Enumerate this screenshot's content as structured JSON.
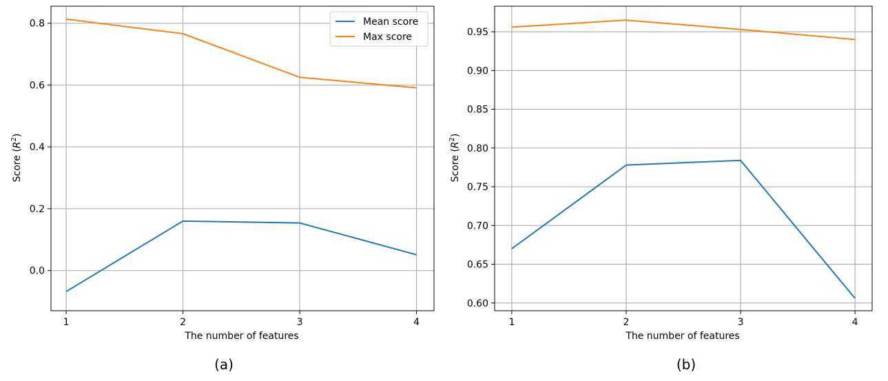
{
  "chart_data": [
    {
      "type": "line",
      "panel_label": "(a)",
      "x": [
        1,
        2,
        3,
        4
      ],
      "xticks": [
        "1",
        "2",
        "3",
        "4"
      ],
      "xlim": [
        0.87,
        4.15
      ],
      "xlabel": "The number of features",
      "ylabel_text": "Score (",
      "ylabel_var": "R",
      "ylabel_sup": "2",
      "ylabel_close": ")",
      "ylim": [
        -0.13,
        0.855
      ],
      "yticks": [
        0.0,
        0.2,
        0.4,
        0.6,
        0.8
      ],
      "ytick_labels": [
        "0.0",
        "0.2",
        "0.4",
        "0.6",
        "0.8"
      ],
      "grid": true,
      "legend": "top-right",
      "series": [
        {
          "name": "Mean score",
          "color": "#1f77b4",
          "values": [
            -0.068,
            0.16,
            0.154,
            0.051
          ]
        },
        {
          "name": "Max score",
          "color": "#ff7f0e",
          "values": [
            0.813,
            0.766,
            0.625,
            0.591
          ]
        }
      ]
    },
    {
      "type": "line",
      "panel_label": "(b)",
      "x": [
        1,
        2,
        3,
        4
      ],
      "xticks": [
        "1",
        "2",
        "3",
        "4"
      ],
      "xlim": [
        0.85,
        4.15
      ],
      "xlabel": "The number of features",
      "ylabel_text": "Score (",
      "ylabel_var": "R",
      "ylabel_sup": "2",
      "ylabel_close": ")",
      "ylim": [
        0.59,
        0.983
      ],
      "yticks": [
        0.6,
        0.65,
        0.7,
        0.75,
        0.8,
        0.85,
        0.9,
        0.95
      ],
      "ytick_labels": [
        "0.60",
        "0.65",
        "0.70",
        "0.75",
        "0.80",
        "0.85",
        "0.90",
        "0.95"
      ],
      "grid": true,
      "series": [
        {
          "color": "#1f77b4",
          "values": [
            0.67,
            0.778,
            0.784,
            0.606
          ]
        },
        {
          "color": "#ff7f0e",
          "values": [
            0.956,
            0.965,
            0.953,
            0.94
          ]
        }
      ]
    }
  ]
}
